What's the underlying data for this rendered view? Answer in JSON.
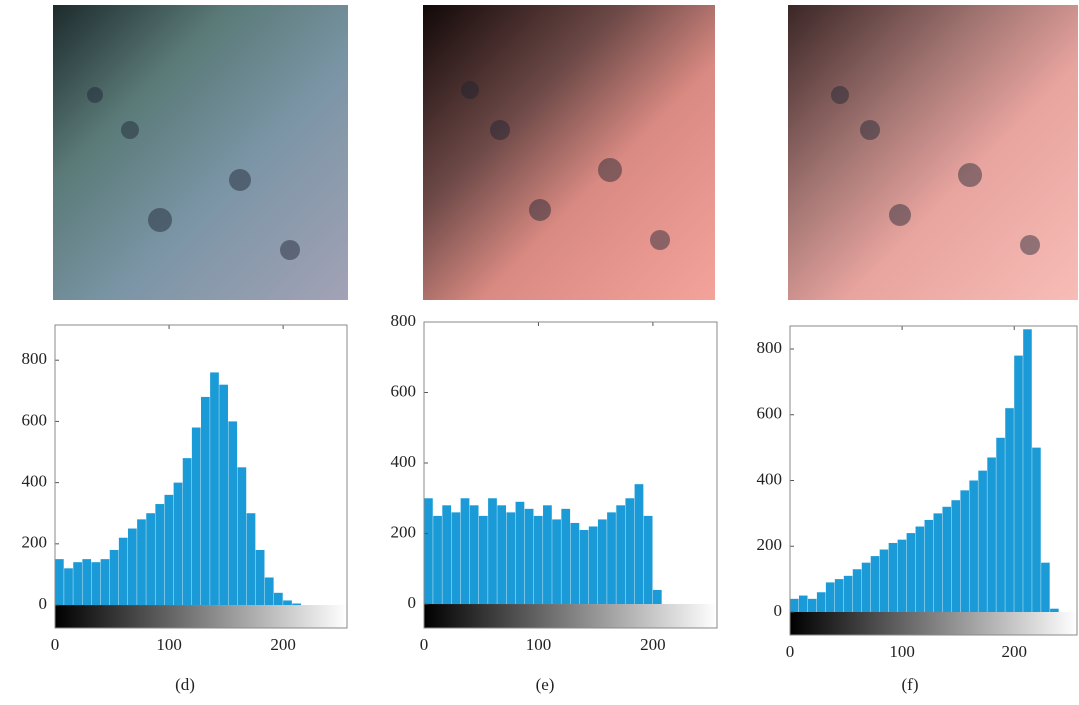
{
  "chart_data": [
    {
      "type": "histogram",
      "label": "(d)",
      "color": "#1a9ad6",
      "bins": [
        0,
        8,
        16,
        24,
        32,
        40,
        48,
        56,
        64,
        72,
        80,
        88,
        96,
        104,
        112,
        120,
        128,
        136,
        144,
        152,
        160,
        168,
        176,
        184,
        192,
        200,
        208,
        216,
        224,
        232,
        240,
        248,
        256
      ],
      "values": [
        150,
        120,
        140,
        150,
        140,
        150,
        180,
        220,
        250,
        280,
        300,
        330,
        360,
        400,
        480,
        580,
        680,
        760,
        720,
        600,
        450,
        300,
        180,
        90,
        40,
        15,
        5,
        0,
        0,
        0,
        0,
        0
      ],
      "xlim": [
        0,
        256
      ],
      "ylim": [
        -75,
        915
      ],
      "xticks": [
        0,
        100,
        200
      ],
      "yticks": [
        0,
        200,
        400,
        600,
        800
      ]
    },
    {
      "type": "histogram",
      "label": "(e)",
      "color": "#1a9ad6",
      "bins": [
        0,
        8,
        16,
        24,
        32,
        40,
        48,
        56,
        64,
        72,
        80,
        88,
        96,
        104,
        112,
        120,
        128,
        136,
        144,
        152,
        160,
        168,
        176,
        184,
        192,
        200,
        208,
        216,
        224,
        232,
        240,
        248,
        256
      ],
      "values": [
        300,
        250,
        280,
        260,
        300,
        280,
        250,
        300,
        280,
        260,
        290,
        270,
        250,
        280,
        240,
        270,
        230,
        210,
        220,
        240,
        260,
        280,
        300,
        340,
        250,
        40,
        0,
        0,
        0,
        0,
        0,
        0
      ],
      "xlim": [
        0,
        256
      ],
      "ylim": [
        -68,
        800
      ],
      "xticks": [
        0,
        100,
        200
      ],
      "yticks": [
        0,
        200,
        400,
        600,
        800
      ]
    },
    {
      "type": "histogram",
      "label": "(f)",
      "color": "#1a9ad6",
      "bins": [
        0,
        8,
        16,
        24,
        32,
        40,
        48,
        56,
        64,
        72,
        80,
        88,
        96,
        104,
        112,
        120,
        128,
        136,
        144,
        152,
        160,
        168,
        176,
        184,
        192,
        200,
        208,
        216,
        224,
        232,
        240,
        248,
        256
      ],
      "values": [
        40,
        50,
        40,
        60,
        90,
        100,
        110,
        130,
        150,
        170,
        190,
        210,
        220,
        240,
        260,
        280,
        300,
        320,
        340,
        370,
        400,
        430,
        470,
        530,
        620,
        780,
        860,
        500,
        150,
        10,
        0,
        0
      ],
      "xlim": [
        0,
        256
      ],
      "ylim": [
        -70,
        870
      ],
      "xticks": [
        0,
        100,
        200
      ],
      "yticks": [
        0,
        200,
        400,
        600,
        800
      ]
    }
  ]
}
